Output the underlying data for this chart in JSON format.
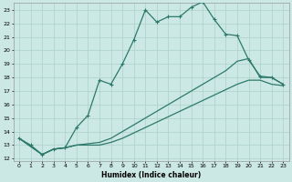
{
  "xlabel": "Humidex (Indice chaleur)",
  "bg_color": "#cce8e4",
  "grid_color": "#b0d4cc",
  "line_color": "#2d7a6a",
  "xlim": [
    -0.5,
    23.5
  ],
  "ylim": [
    11.8,
    23.5
  ],
  "xticks": [
    0,
    1,
    2,
    3,
    4,
    5,
    6,
    7,
    8,
    9,
    10,
    11,
    12,
    13,
    14,
    15,
    16,
    17,
    18,
    19,
    20,
    21,
    22,
    23
  ],
  "yticks": [
    12,
    13,
    14,
    15,
    16,
    17,
    18,
    19,
    20,
    21,
    22,
    23
  ],
  "line1_x": [
    0,
    1,
    2,
    3,
    4,
    5,
    6,
    7,
    8,
    9,
    10,
    11,
    12,
    13,
    14,
    15,
    16,
    17,
    18,
    19,
    20,
    21,
    22,
    23
  ],
  "line1_y": [
    13.5,
    13.0,
    12.3,
    12.7,
    12.8,
    14.3,
    15.2,
    17.8,
    17.5,
    19.0,
    20.8,
    23.0,
    22.1,
    22.5,
    22.5,
    23.2,
    23.6,
    22.3,
    21.2,
    21.1,
    19.3,
    18.1,
    18.0,
    17.5
  ],
  "line2_x": [
    0,
    2,
    3,
    4,
    5,
    6,
    7,
    8,
    9,
    10,
    11,
    12,
    13,
    14,
    15,
    16,
    17,
    18,
    19,
    20,
    21,
    22,
    23
  ],
  "line2_y": [
    13.5,
    12.3,
    12.7,
    12.8,
    13.0,
    13.1,
    13.2,
    13.5,
    14.0,
    14.5,
    15.0,
    15.5,
    16.0,
    16.5,
    17.0,
    17.5,
    18.0,
    18.5,
    19.2,
    19.4,
    18.0,
    18.0,
    17.5
  ],
  "line3_x": [
    0,
    2,
    3,
    4,
    5,
    6,
    7,
    8,
    9,
    10,
    11,
    12,
    13,
    14,
    15,
    16,
    17,
    18,
    19,
    20,
    21,
    22,
    23
  ],
  "line3_y": [
    13.5,
    12.3,
    12.7,
    12.8,
    13.0,
    13.0,
    13.0,
    13.2,
    13.5,
    13.9,
    14.3,
    14.7,
    15.1,
    15.5,
    15.9,
    16.3,
    16.7,
    17.1,
    17.5,
    17.8,
    17.8,
    17.5,
    17.4
  ]
}
